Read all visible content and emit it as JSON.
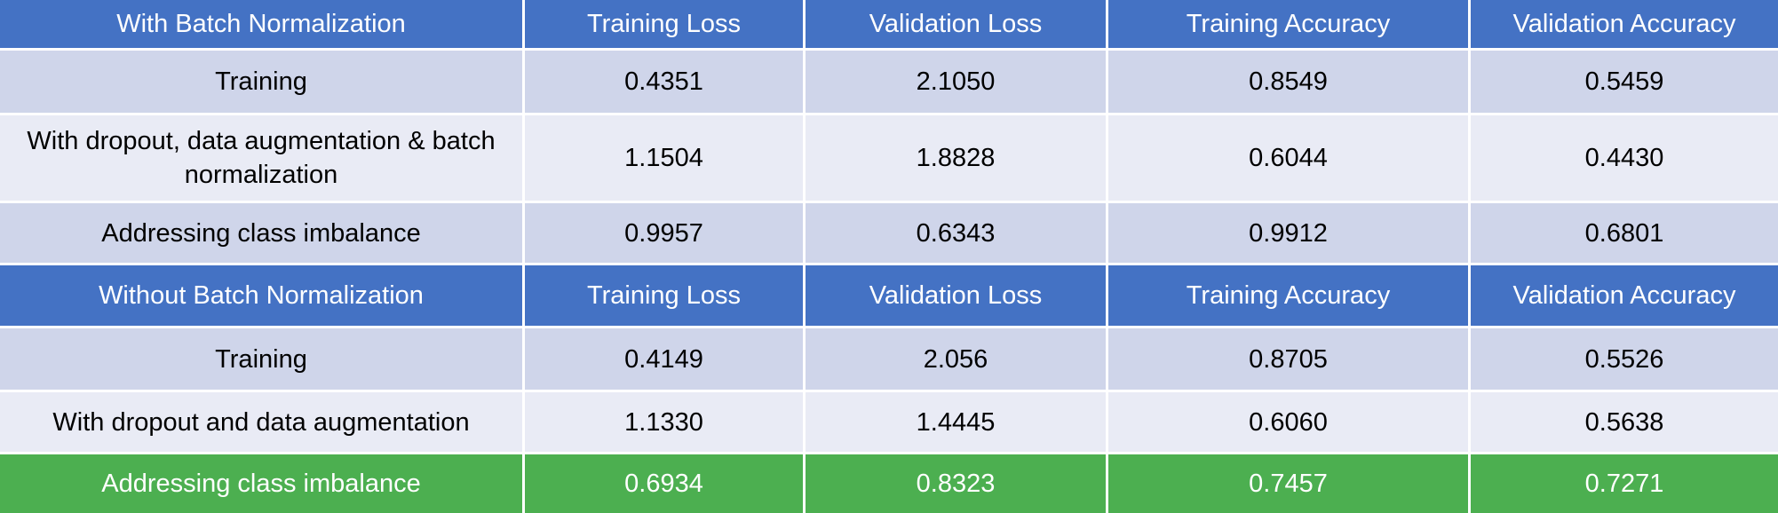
{
  "table": {
    "sections": [
      {
        "header": [
          "With Batch Normalization",
          "Training Loss",
          "Validation Loss",
          "Training Accuracy",
          "Validation Accuracy"
        ],
        "rows": [
          [
            "Training",
            "0.4351",
            "2.1050",
            "0.8549",
            "0.5459"
          ],
          [
            "With dropout, data augmentation & batch normalization",
            "1.1504",
            "1.8828",
            "0.6044",
            "0.4430"
          ],
          [
            "Addressing class imbalance",
            "0.9957",
            "0.6343",
            "0.9912",
            "0.6801"
          ]
        ]
      },
      {
        "header": [
          "Without Batch Normalization",
          "Training Loss",
          "Validation Loss",
          "Training Accuracy",
          "Validation Accuracy"
        ],
        "rows": [
          [
            "Training",
            "0.4149",
            "2.056",
            "0.8705",
            "0.5526"
          ],
          [
            "With dropout and data augmentation",
            "1.1330",
            "1.4445",
            "0.6060",
            "0.5638"
          ],
          [
            "Addressing class imbalance",
            "0.6934",
            "0.8323",
            "0.7457",
            "0.7271"
          ]
        ]
      }
    ]
  },
  "colors": {
    "header_bg": "#4472c4",
    "row_dark": "#cfd5ea",
    "row_light": "#e9ebf5",
    "highlight_bg": "#4caf50",
    "header_text": "#ffffff"
  }
}
